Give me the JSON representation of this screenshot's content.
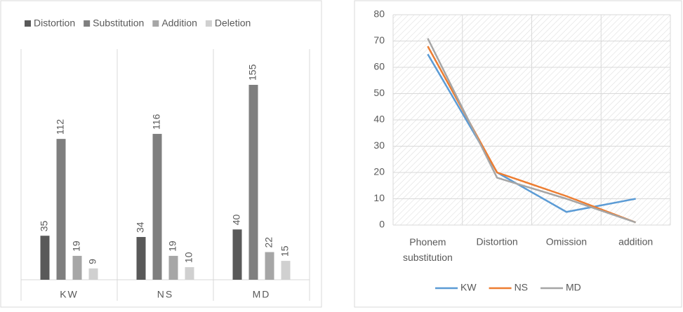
{
  "chart_data": [
    {
      "type": "bar",
      "legend": "top",
      "categories": [
        "KW",
        "NS",
        "MD"
      ],
      "series": [
        {
          "name": "Distortion",
          "color": "#595959",
          "values": [
            35,
            34,
            40
          ]
        },
        {
          "name": "Substitution",
          "color": "#7f7f7f",
          "values": [
            112,
            116,
            155
          ]
        },
        {
          "name": "Addition",
          "color": "#a6a6a6",
          "values": [
            19,
            19,
            22
          ]
        },
        {
          "name": "Deletion",
          "color": "#d0d0d0",
          "values": [
            9,
            10,
            15
          ]
        }
      ]
    },
    {
      "type": "line",
      "legend": "bottom",
      "grid": true,
      "categories": [
        "Phonem substitution",
        "Distortion",
        "Omission",
        "addition"
      ],
      "ylim": [
        0,
        80
      ],
      "yticks": [
        0,
        10,
        20,
        30,
        40,
        50,
        60,
        70,
        80
      ],
      "series": [
        {
          "name": "KW",
          "color": "#5b9bd5",
          "values": [
            65,
            20,
            5,
            10
          ]
        },
        {
          "name": "NS",
          "color": "#ed7d31",
          "values": [
            68,
            20,
            11,
            1
          ]
        },
        {
          "name": "MD",
          "color": "#a5a5a5",
          "values": [
            71,
            18,
            10,
            1
          ]
        }
      ]
    }
  ]
}
